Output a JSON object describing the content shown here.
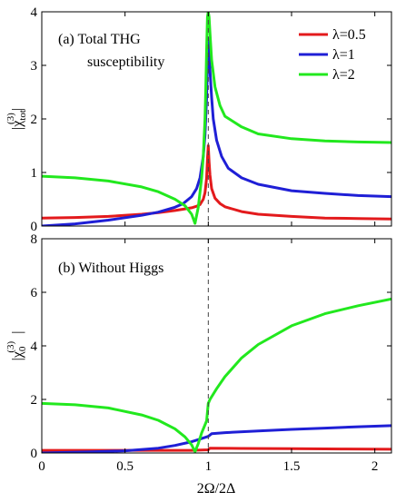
{
  "chart_data": [
    {
      "type": "line",
      "panel": "a",
      "title_line1": "(a) Total THG",
      "title_line2": "susceptibility",
      "ylabel_main": "|χ",
      "ylabel_sup": "(3)",
      "ylabel_sub": "tot",
      "ylabel_end": "|",
      "xlim": [
        0,
        2.1
      ],
      "ylim": [
        0,
        4
      ],
      "yticks": [
        0,
        1,
        2,
        3,
        4
      ],
      "legend_position": "top-right",
      "series": [
        {
          "name": "λ=0.5",
          "color": "#e31a1c",
          "x": [
            0,
            0.2,
            0.4,
            0.6,
            0.7,
            0.8,
            0.86,
            0.9,
            0.93,
            0.95,
            0.97,
            0.98,
            0.99,
            0.995,
            1.0,
            1.005,
            1.01,
            1.02,
            1.04,
            1.07,
            1.1,
            1.2,
            1.3,
            1.5,
            1.7,
            1.9,
            2.1
          ],
          "y": [
            0.15,
            0.16,
            0.18,
            0.22,
            0.25,
            0.29,
            0.32,
            0.34,
            0.37,
            0.4,
            0.5,
            0.62,
            0.9,
            1.25,
            1.5,
            1.2,
            0.95,
            0.7,
            0.52,
            0.42,
            0.36,
            0.27,
            0.22,
            0.18,
            0.15,
            0.14,
            0.13
          ]
        },
        {
          "name": "λ=1",
          "color": "#1f1fd6",
          "x": [
            0,
            0.2,
            0.4,
            0.6,
            0.7,
            0.8,
            0.85,
            0.9,
            0.93,
            0.95,
            0.97,
            0.98,
            0.99,
            0.995,
            1.0,
            1.005,
            1.01,
            1.02,
            1.03,
            1.05,
            1.08,
            1.12,
            1.2,
            1.3,
            1.5,
            1.7,
            1.9,
            2.1
          ],
          "y": [
            0.0,
            0.04,
            0.11,
            0.2,
            0.26,
            0.35,
            0.42,
            0.55,
            0.7,
            0.9,
            1.3,
            1.7,
            2.4,
            3.0,
            3.5,
            3.2,
            2.9,
            2.4,
            2.0,
            1.6,
            1.3,
            1.08,
            0.9,
            0.78,
            0.66,
            0.61,
            0.57,
            0.55
          ]
        },
        {
          "name": "λ=2",
          "color": "#22e81e",
          "x": [
            0,
            0.2,
            0.4,
            0.6,
            0.7,
            0.8,
            0.86,
            0.9,
            0.92,
            0.94,
            0.96,
            0.97,
            0.98,
            0.985,
            0.99,
            0.995,
            1.0,
            1.005,
            1.01,
            1.02,
            1.04,
            1.07,
            1.1,
            1.2,
            1.3,
            1.5,
            1.7,
            1.9,
            2.1
          ],
          "y": [
            0.93,
            0.9,
            0.84,
            0.73,
            0.64,
            0.5,
            0.38,
            0.22,
            0.05,
            0.35,
            0.9,
            1.3,
            2.0,
            2.6,
            3.3,
            3.9,
            4.0,
            3.9,
            3.6,
            3.1,
            2.6,
            2.25,
            2.05,
            1.85,
            1.72,
            1.63,
            1.59,
            1.57,
            1.56
          ]
        }
      ]
    },
    {
      "type": "line",
      "panel": "b",
      "title_line1": "(b) Without Higgs",
      "ylabel_main": "|χ",
      "ylabel_sup": "(3)",
      "ylabel_sub": "0",
      "ylabel_end": "|",
      "xlabel": "2Ω/2Δ",
      "xlim": [
        0,
        2.1
      ],
      "ylim": [
        0,
        8
      ],
      "yticks": [
        0,
        2,
        4,
        6,
        8
      ],
      "xticks": [
        0,
        0.5,
        1,
        1.5,
        2
      ],
      "xtick_labels": [
        "0",
        "0.5",
        "1",
        "1.5",
        "2"
      ],
      "series": [
        {
          "name": "λ=0.5",
          "color": "#e31a1c",
          "x": [
            0,
            0.5,
            0.9,
            1.0,
            1.01,
            1.2,
            1.5,
            1.8,
            2.1
          ],
          "y": [
            0.1,
            0.1,
            0.1,
            0.12,
            0.18,
            0.17,
            0.16,
            0.15,
            0.14
          ]
        },
        {
          "name": "λ=1",
          "color": "#1f1fd6",
          "x": [
            0,
            0.3,
            0.5,
            0.7,
            0.8,
            0.9,
            0.95,
            1.0,
            1.02,
            1.1,
            1.3,
            1.5,
            1.7,
            1.9,
            2.1
          ],
          "y": [
            0.0,
            0.04,
            0.08,
            0.18,
            0.28,
            0.42,
            0.52,
            0.62,
            0.72,
            0.76,
            0.82,
            0.88,
            0.93,
            0.98,
            1.02
          ]
        },
        {
          "name": "λ=2",
          "color": "#22e81e",
          "x": [
            0,
            0.2,
            0.4,
            0.6,
            0.7,
            0.8,
            0.86,
            0.9,
            0.92,
            0.94,
            0.96,
            0.98,
            0.99,
            1.0,
            1.01,
            1.05,
            1.1,
            1.2,
            1.3,
            1.5,
            1.7,
            1.9,
            2.1
          ],
          "y": [
            1.85,
            1.8,
            1.68,
            1.42,
            1.22,
            0.9,
            0.6,
            0.3,
            0.05,
            0.35,
            0.75,
            1.05,
            1.2,
            1.85,
            2.0,
            2.4,
            2.85,
            3.55,
            4.05,
            4.75,
            5.2,
            5.5,
            5.75
          ]
        }
      ]
    }
  ],
  "legend": {
    "entries": [
      "λ=0.5",
      "λ=1",
      "λ=2"
    ]
  }
}
